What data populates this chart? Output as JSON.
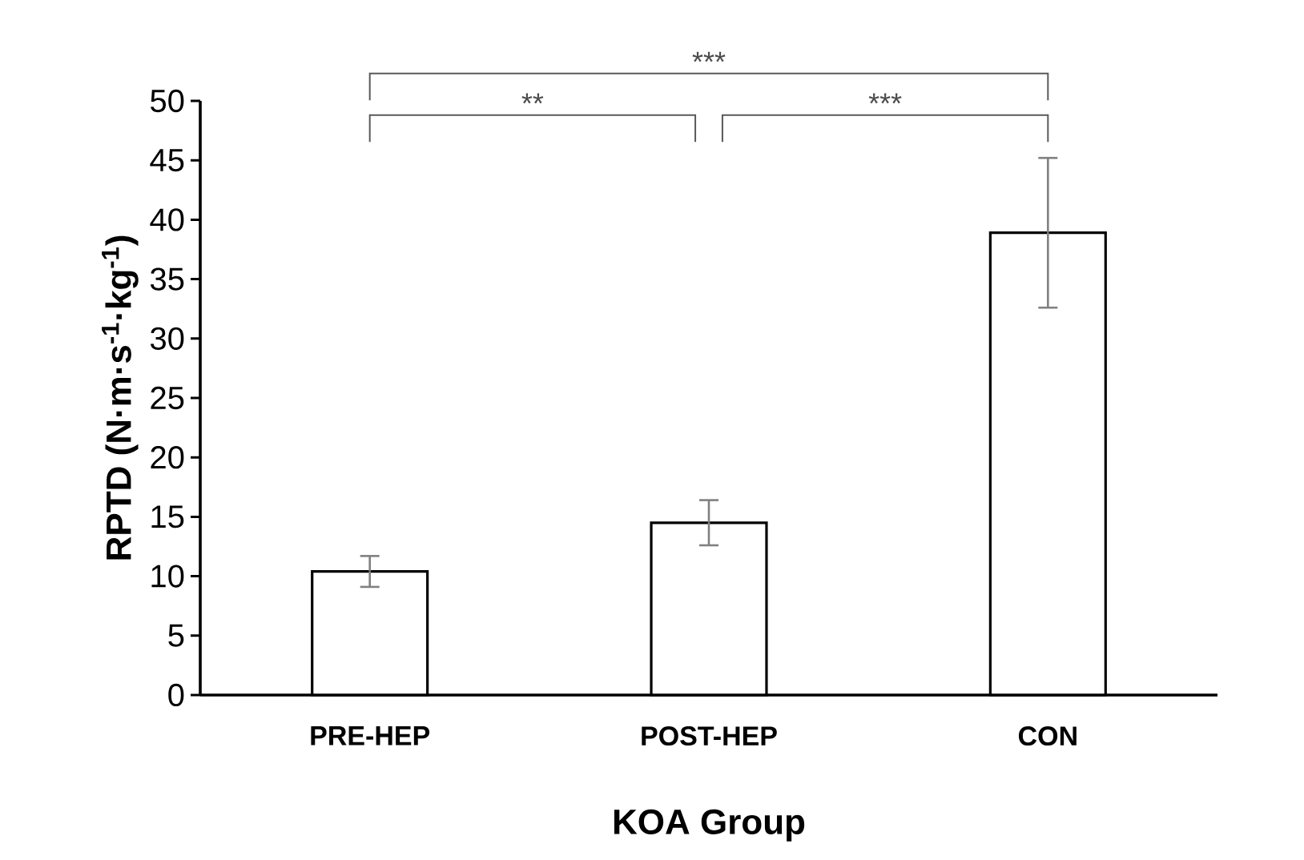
{
  "chart_data": {
    "type": "bar",
    "xlabel": "KOA Group",
    "ylabel": "RPTD (N·m·s$^{-1}$·kg$^{-1}$)",
    "categories": [
      "PRE-HEP",
      "POST-HEP",
      "CON"
    ],
    "series": [
      {
        "color": "#ffffff",
        "values": [
          10.4,
          14.5,
          38.9
        ],
        "errors": [
          1.3,
          1.9,
          6.3
        ]
      }
    ],
    "ylim": [
      0,
      50
    ],
    "yticks": [
      0,
      5,
      10,
      15,
      20,
      25,
      30,
      35,
      40,
      45,
      50
    ],
    "grid": false,
    "annotations": [
      "***",
      "**",
      "***"
    ]
  }
}
